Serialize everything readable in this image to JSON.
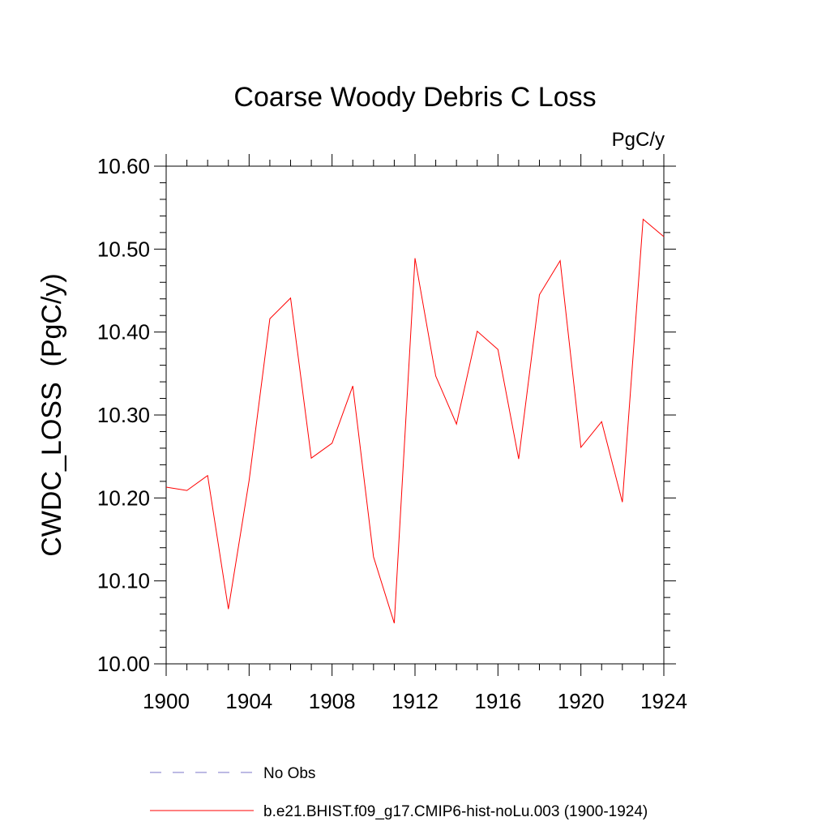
{
  "chart_data": {
    "type": "line",
    "title": "Coarse Woody Debris C Loss",
    "units": "PgC/y",
    "ylabel": "CWDC_LOSS  (PgC/y)",
    "xlabel": "",
    "xlim": [
      1900,
      1924
    ],
    "ylim": [
      10.0,
      10.6
    ],
    "xticks": [
      1900,
      1904,
      1908,
      1912,
      1916,
      1920,
      1924
    ],
    "xtick_labels": [
      "1900",
      "1904",
      "1908",
      "1912",
      "1916",
      "1920",
      "1924"
    ],
    "yticks": [
      10.0,
      10.1,
      10.2,
      10.3,
      10.4,
      10.5,
      10.6
    ],
    "ytick_labels": [
      "10.00",
      "10.10",
      "10.20",
      "10.30",
      "10.40",
      "10.50",
      "10.60"
    ],
    "grid": false,
    "legend_position": "bottom",
    "series": [
      {
        "name": "b.e21.BHIST.f09_g17.CMIP6-hist-noLu.003 (1900-1924)",
        "color": "#ff0000",
        "style": "solid",
        "x": [
          1900,
          1901,
          1902,
          1903,
          1904,
          1905,
          1906,
          1907,
          1908,
          1909,
          1910,
          1911,
          1912,
          1913,
          1914,
          1915,
          1916,
          1917,
          1918,
          1919,
          1920,
          1921,
          1922,
          1923,
          1924
        ],
        "values": [
          10.213,
          10.209,
          10.227,
          10.066,
          10.221,
          10.416,
          10.441,
          10.248,
          10.266,
          10.335,
          10.129,
          10.049,
          10.489,
          10.347,
          10.289,
          10.401,
          10.379,
          10.247,
          10.445,
          10.486,
          10.261,
          10.292,
          10.195,
          10.536,
          10.515
        ]
      }
    ],
    "legend": [
      {
        "label": "No Obs",
        "color": "#7b76c9",
        "style": "dashed"
      },
      {
        "label": "b.e21.BHIST.f09_g17.CMIP6-hist-noLu.003 (1900-1924)",
        "color": "#ff0000",
        "style": "solid"
      }
    ]
  }
}
